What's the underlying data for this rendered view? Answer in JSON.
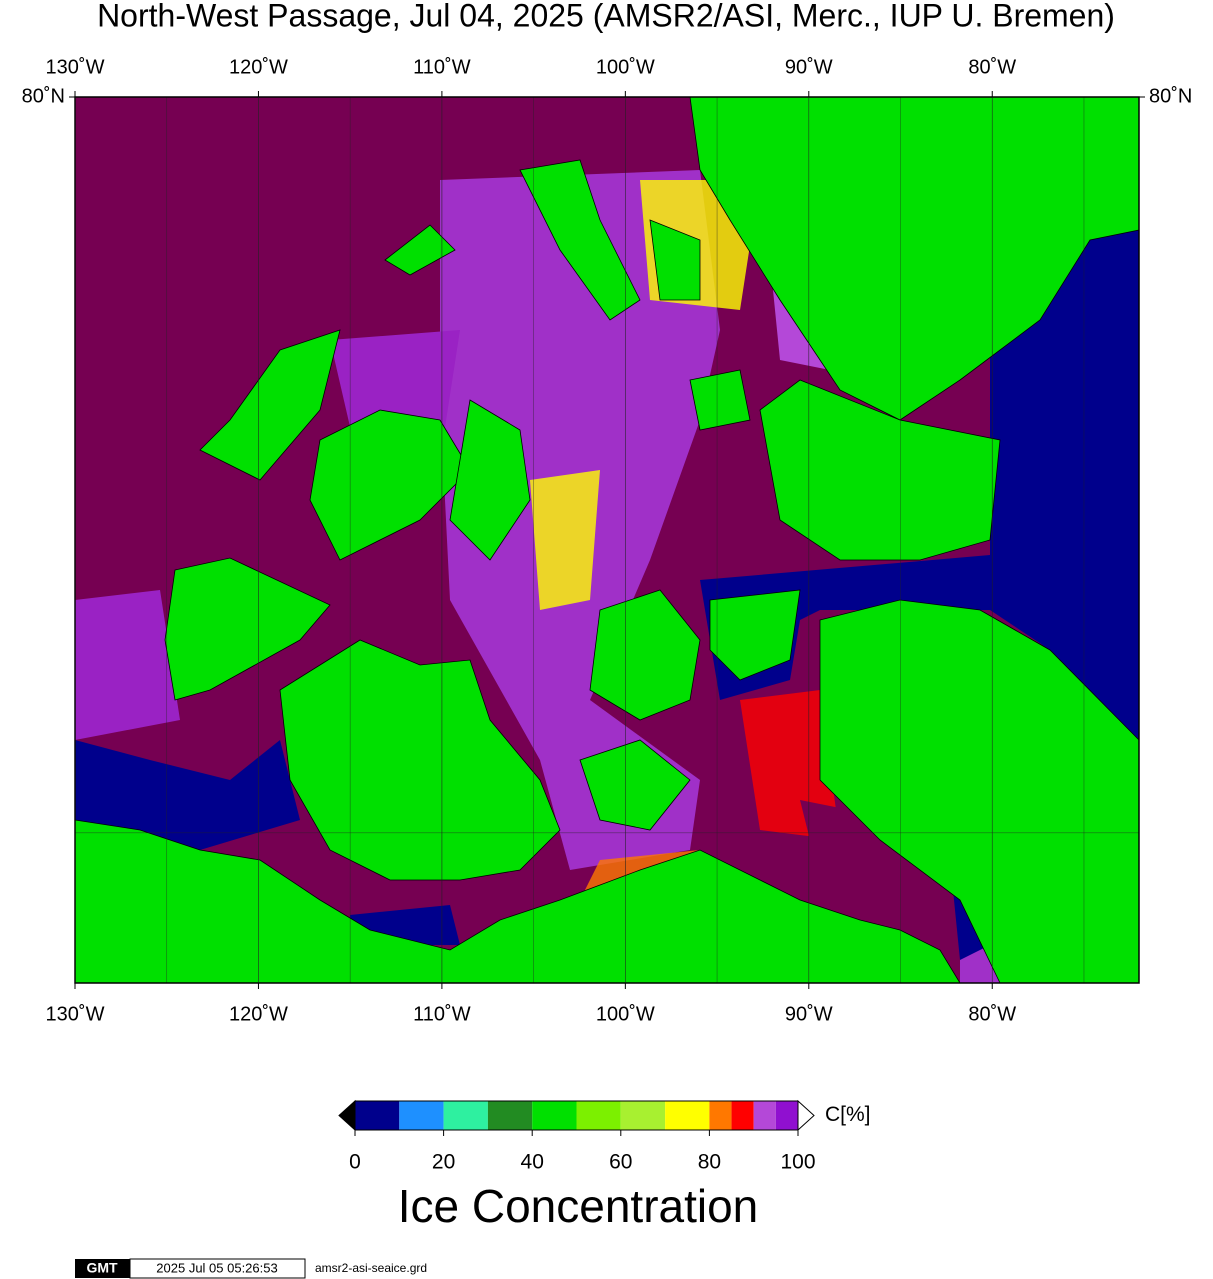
{
  "title": "North-West Passage, Jul 04, 2025 (AMSR2/ASI, Merc., IUP U. Bremen)",
  "map": {
    "type": "map",
    "projection": "mercator",
    "xlim": [
      -130,
      -72
    ],
    "ylim": [
      67,
      80
    ],
    "xticks": [
      {
        "value": -130,
        "label": "130˚W"
      },
      {
        "value": -120,
        "label": "120˚W"
      },
      {
        "value": -110,
        "label": "110˚W"
      },
      {
        "value": -100,
        "label": "100˚W"
      },
      {
        "value": -90,
        "label": "90˚W"
      },
      {
        "value": -80,
        "label": "80˚W"
      }
    ],
    "yticks": [
      {
        "value": 80,
        "label": "80˚N"
      }
    ],
    "xgrid": [
      -125,
      -120,
      -115,
      -110,
      -105,
      -100,
      -95,
      -90,
      -85,
      -80,
      -75
    ],
    "ygrid": [
      70
    ]
  },
  "colorbar": {
    "bins": [
      0,
      10,
      20,
      30,
      40,
      50,
      60,
      70,
      80,
      85,
      90,
      95,
      100
    ],
    "colors": [
      "#00008c",
      "#1e90ff",
      "#2ef0a0",
      "#228b22",
      "#00e000",
      "#7cf000",
      "#a8f030",
      "#ffff00",
      "#ff7800",
      "#ff0000",
      "#b448d8",
      "#9010d0"
    ],
    "under_color": "#000000",
    "over_color": "#ffffff",
    "ticks": [
      0,
      20,
      40,
      60,
      80,
      100
    ],
    "unit": "C[%]",
    "title": "Ice Concentration"
  },
  "footer": {
    "logo": "GMT",
    "timestamp": "2025 Jul 05 05:26:53",
    "file": "amsr2-asi-seaice.grd"
  }
}
